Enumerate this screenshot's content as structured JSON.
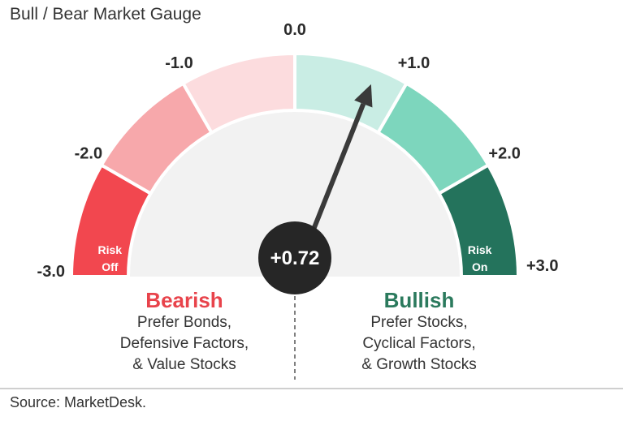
{
  "title": "Bull / Bear Market Gauge",
  "source": "Source: MarketDesk.",
  "chart_data": {
    "type": "gauge",
    "range": [
      -3.0,
      3.0
    ],
    "value": 0.72,
    "value_label": "+0.72",
    "tick_labels": [
      "-3.0",
      "-2.0",
      "-1.0",
      "0.0",
      "+1.0",
      "+2.0",
      "+3.0"
    ],
    "segments": [
      {
        "from": -3.0,
        "to": -2.0,
        "color": "#f2474f",
        "label": [
          "Risk",
          "Off"
        ]
      },
      {
        "from": -2.0,
        "to": -1.0,
        "color": "#f7a8ab",
        "label": []
      },
      {
        "from": -1.0,
        "to": 0.0,
        "color": "#fcdcde",
        "label": []
      },
      {
        "from": 0.0,
        "to": 1.0,
        "color": "#c9ede4",
        "label": []
      },
      {
        "from": 1.0,
        "to": 2.0,
        "color": "#7dd6bd",
        "label": []
      },
      {
        "from": 2.0,
        "to": 3.0,
        "color": "#24735c",
        "label": [
          "Risk",
          "On"
        ]
      }
    ],
    "bearish": {
      "heading": "Bearish",
      "lines": [
        "Prefer Bonds,",
        "Defensive Factors,",
        "& Value Stocks"
      ]
    },
    "bullish": {
      "heading": "Bullish",
      "lines": [
        "Prefer Stocks,",
        "Cyclical Factors,",
        "& Growth Stocks"
      ]
    }
  }
}
